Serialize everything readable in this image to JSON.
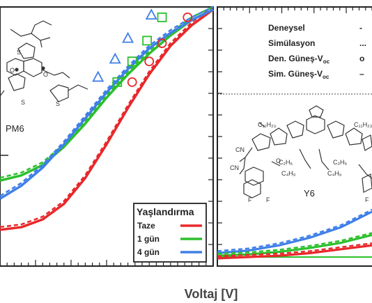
{
  "chart_data": [
    {
      "type": "line",
      "panel": "left",
      "xlabel": "Voltaj [V]",
      "molecule_label": "PM6",
      "legend": {
        "title": "Yaşlandırma",
        "entries": [
          {
            "label": "Taze",
            "color": "#e8282b"
          },
          {
            "label": "1 gün",
            "color": "#2cbf2c"
          },
          {
            "label": "4 gün",
            "color": "#3f7fe8"
          }
        ],
        "placement": "bottom-right"
      },
      "series": [
        {
          "color": "#e8282b",
          "x": [
            0.0,
            0.1,
            0.2,
            0.3,
            0.4,
            0.5,
            0.6,
            0.7,
            0.8,
            0.9,
            1.0
          ],
          "values": [
            0.14,
            0.15,
            0.18,
            0.24,
            0.34,
            0.47,
            0.61,
            0.74,
            0.85,
            0.93,
            0.99
          ]
        },
        {
          "color": "#2cbf2c",
          "x": [
            0.0,
            0.1,
            0.2,
            0.3,
            0.4,
            0.5,
            0.6,
            0.7,
            0.8,
            0.9,
            1.0
          ],
          "values": [
            0.33,
            0.35,
            0.39,
            0.46,
            0.55,
            0.65,
            0.74,
            0.82,
            0.89,
            0.95,
            0.99
          ]
        },
        {
          "color": "#3f7fe8",
          "x": [
            0.0,
            0.1,
            0.2,
            0.3,
            0.4,
            0.5,
            0.6,
            0.7,
            0.8,
            0.9,
            1.0
          ],
          "values": [
            0.26,
            0.31,
            0.38,
            0.47,
            0.57,
            0.67,
            0.76,
            0.84,
            0.9,
            0.95,
            0.99
          ]
        }
      ],
      "markers": [
        {
          "shape": "circle",
          "color": "#e8282b",
          "x": [
            0.62,
            0.7,
            0.76,
            0.88
          ],
          "y": [
            0.71,
            0.79,
            0.86,
            0.96
          ]
        },
        {
          "shape": "square",
          "color": "#2cbf2c",
          "x": [
            0.55,
            0.62,
            0.69,
            0.76
          ],
          "y": [
            0.71,
            0.79,
            0.87,
            0.96
          ]
        },
        {
          "shape": "triangle",
          "color": "#3f7fe8",
          "x": [
            0.46,
            0.54,
            0.6,
            0.71
          ],
          "y": [
            0.73,
            0.8,
            0.88,
            0.97
          ]
        }
      ],
      "grid": false
    },
    {
      "type": "line",
      "panel": "right",
      "molecule_label": "Y6",
      "info_entries": [
        {
          "label": "Deneysel",
          "symbol": "-"
        },
        {
          "label": "Simülasyon",
          "symbol": "..."
        },
        {
          "label": "Den. Güneş-V",
          "sub": "oc",
          "symbol": "o"
        },
        {
          "label": "Sim. Güneş-V",
          "sub": "oc",
          "symbol": "–"
        }
      ],
      "series": [
        {
          "color": "#3f7fe8",
          "x": [
            0.0,
            0.2,
            0.4,
            0.6,
            0.8,
            1.0
          ],
          "values": [
            0.05,
            0.06,
            0.08,
            0.11,
            0.15,
            0.21
          ]
        },
        {
          "color": "#2cbf2c",
          "x": [
            0.0,
            0.2,
            0.4,
            0.6,
            0.8,
            1.0
          ],
          "values": [
            0.04,
            0.045,
            0.055,
            0.07,
            0.09,
            0.12
          ]
        },
        {
          "color": "#e8282b",
          "x": [
            0.0,
            0.2,
            0.4,
            0.6,
            0.8,
            1.0
          ],
          "values": [
            0.03,
            0.035,
            0.04,
            0.05,
            0.065,
            0.08
          ]
        }
      ],
      "grid": false
    }
  ]
}
